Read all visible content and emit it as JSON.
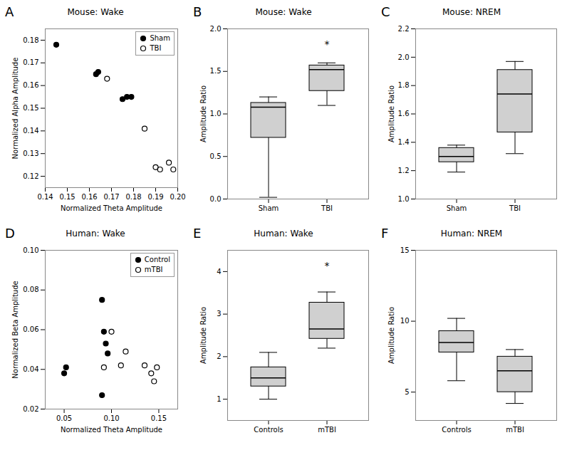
{
  "chart_data": [
    {
      "type": "scatter",
      "title": "Mouse: Wake",
      "xlabel": "Normalized Theta Amplitude",
      "ylabel": "Normalized Alpha Amplitude",
      "xlim": [
        0.14,
        0.2
      ],
      "ylim": [
        0.115,
        0.185
      ],
      "xticks": [
        0.14,
        0.15,
        0.16,
        0.17,
        0.18,
        0.19,
        {
          "value": 0.2,
          "label": "0.20"
        }
      ],
      "yticks": [
        0.12,
        0.13,
        0.14,
        0.15,
        0.16,
        0.17,
        0.18
      ],
      "series": [
        {
          "name": "Sham",
          "color": "#000000",
          "marker": "filled",
          "x": [
            0.145,
            0.163,
            0.164,
            0.175,
            0.177,
            0.179
          ],
          "y": [
            0.178,
            0.165,
            0.166,
            0.154,
            0.155,
            0.155
          ]
        },
        {
          "name": "TBI",
          "color": "#000000",
          "marker": "hollow",
          "x": [
            0.168,
            0.185,
            0.19,
            0.192,
            0.196,
            0.198
          ],
          "y": [
            0.163,
            0.141,
            0.124,
            0.123,
            0.126,
            0.123
          ]
        }
      ],
      "legend": "upper right",
      "grid": false,
      "annotations": [
        {
          "text": "A"
        }
      ]
    },
    {
      "type": "box",
      "title": "Mouse: Wake",
      "ylabel": "Amplitude Ratio",
      "ylim": [
        0.0,
        2.0
      ],
      "yticks": [
        {
          "value": 0.0,
          "label": "0.0"
        },
        0.5,
        {
          "value": 1.0,
          "label": "1.0"
        },
        1.5,
        {
          "value": 2.0,
          "label": "2.0"
        }
      ],
      "categories": [
        "Sham",
        "TBI"
      ],
      "color": "#d0d0d0",
      "boxes": [
        {
          "q1": 0.72,
          "median": 1.08,
          "q3": 1.13,
          "whislo": 0.02,
          "whishi": 1.2
        },
        {
          "q1": 1.27,
          "median": 1.52,
          "q3": 1.57,
          "whislo": 1.1,
          "whishi": 1.6
        }
      ],
      "grid": false,
      "annotations": [
        {
          "text": "B"
        },
        {
          "x": "TBI",
          "y": 1.78,
          "text": "*"
        }
      ]
    },
    {
      "type": "box",
      "title": "Mouse: NREM",
      "ylabel": "Amplitude Ratio",
      "ylim": [
        1.0,
        2.2
      ],
      "yticks": [
        {
          "value": 1.0,
          "label": "1.0"
        },
        1.2,
        1.4,
        1.6,
        1.8,
        {
          "value": 2.0,
          "label": "2.0"
        },
        2.2
      ],
      "categories": [
        "Sham",
        "TBI"
      ],
      "color": "#d0d0d0",
      "boxes": [
        {
          "q1": 1.26,
          "median": 1.3,
          "q3": 1.36,
          "whislo": 1.19,
          "whishi": 1.38
        },
        {
          "q1": 1.47,
          "median": 1.74,
          "q3": 1.91,
          "whislo": 1.32,
          "whishi": 1.97
        }
      ],
      "grid": false,
      "annotations": [
        {
          "text": "C"
        }
      ]
    },
    {
      "type": "scatter",
      "title": "Human: Wake",
      "xlabel": "Normalized Theta Amplitude",
      "ylabel": "Normalized Beta Amplitude",
      "xlim": [
        0.03,
        0.17
      ],
      "ylim": [
        0.02,
        0.1
      ],
      "xticks": [
        0.05,
        {
          "value": 0.1,
          "label": "0.10"
        },
        0.15
      ],
      "yticks": [
        0.02,
        0.04,
        0.06,
        0.08,
        {
          "value": 0.1,
          "label": "0.10"
        }
      ],
      "series": [
        {
          "name": "Control",
          "color": "#000000",
          "marker": "filled",
          "x": [
            0.05,
            0.052,
            0.09,
            0.092,
            0.094,
            0.096,
            0.09
          ],
          "y": [
            0.038,
            0.041,
            0.075,
            0.059,
            0.053,
            0.048,
            0.027
          ]
        },
        {
          "name": "mTBI",
          "color": "#000000",
          "marker": "hollow",
          "x": [
            0.092,
            0.1,
            0.11,
            0.115,
            0.135,
            0.142,
            0.145,
            0.148
          ],
          "y": [
            0.041,
            0.059,
            0.042,
            0.049,
            0.042,
            0.038,
            0.034,
            0.041
          ]
        }
      ],
      "legend": "upper right",
      "grid": false,
      "annotations": [
        {
          "text": "D"
        }
      ]
    },
    {
      "type": "box",
      "title": "Human: Wake",
      "ylabel": "Amplitude Ratio",
      "ylim": [
        0.5,
        4.5
      ],
      "yticks": [
        1,
        2,
        3,
        4
      ],
      "categories": [
        "Controls",
        "mTBI"
      ],
      "color": "#d0d0d0",
      "boxes": [
        {
          "q1": 1.3,
          "median": 1.5,
          "q3": 1.75,
          "whislo": 1.0,
          "whishi": 2.1
        },
        {
          "q1": 2.42,
          "median": 2.65,
          "q3": 3.27,
          "whislo": 2.2,
          "whishi": 3.52
        }
      ],
      "grid": false,
      "annotations": [
        {
          "text": "E"
        },
        {
          "x": "mTBI",
          "y": 4.05,
          "text": "*"
        }
      ]
    },
    {
      "type": "box",
      "title": "Human: NREM",
      "ylabel": "Amplitude Ratio",
      "ylim": [
        3,
        15
      ],
      "yticks": [
        5,
        10,
        15
      ],
      "categories": [
        "Controls",
        "mTBI"
      ],
      "color": "#d0d0d0",
      "boxes": [
        {
          "q1": 7.8,
          "median": 8.5,
          "q3": 9.3,
          "whislo": 5.8,
          "whishi": 10.2
        },
        {
          "q1": 5.0,
          "median": 6.5,
          "q3": 7.5,
          "whislo": 4.2,
          "whishi": 8.0
        }
      ],
      "grid": false,
      "annotations": [
        {
          "text": "F"
        }
      ]
    }
  ]
}
